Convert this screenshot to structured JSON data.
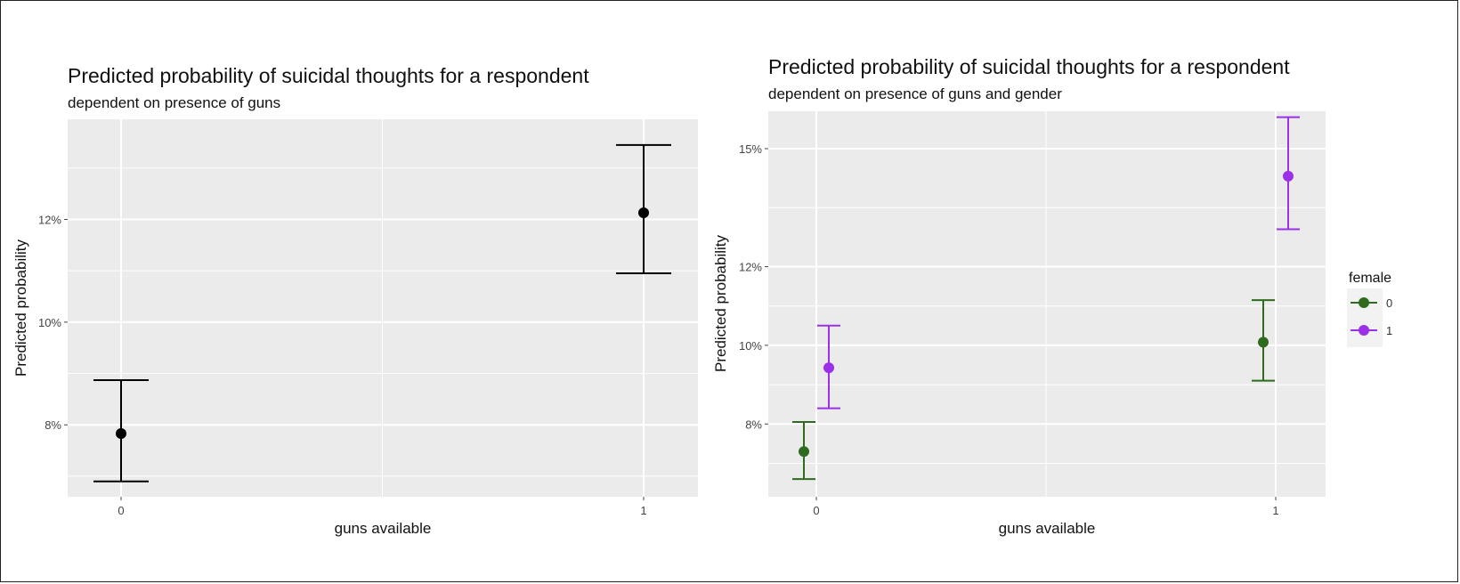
{
  "chart_data": [
    {
      "type": "scatter",
      "title": "Predicted probability of suicidal thoughts for a respondent",
      "subtitle": "dependent on presence of guns",
      "xlabel": "guns available",
      "ylabel": "Predicted probability",
      "x_ticks": [
        "0",
        "1"
      ],
      "y_ticks": [
        {
          "value": 8,
          "label": "8%"
        },
        {
          "value": 10,
          "label": "10%"
        },
        {
          "value": 12,
          "label": "12%"
        }
      ],
      "ylim": [
        6.6,
        13.95
      ],
      "grid": true,
      "series": [
        {
          "color": "#000000",
          "points": [
            {
              "x": "0",
              "y": 7.83,
              "ymin": 6.9,
              "ymax": 8.87
            },
            {
              "x": "1",
              "y": 12.13,
              "ymin": 10.95,
              "ymax": 13.45
            }
          ]
        }
      ]
    },
    {
      "type": "scatter",
      "title": "Predicted probability of suicidal thoughts for a respondent",
      "subtitle": "dependent on presence of guns and gender",
      "xlabel": "guns available",
      "ylabel": "Predicted probability",
      "x_ticks": [
        "0",
        "1"
      ],
      "y_ticks": [
        {
          "value": 8,
          "label": "8%"
        },
        {
          "value": 10,
          "label": "10%"
        },
        {
          "value": 12,
          "label": "12%"
        },
        {
          "value": 15,
          "label": "15%"
        }
      ],
      "ylim": [
        6.15,
        15.95
      ],
      "grid": true,
      "legend": {
        "title": "female",
        "position": "right"
      },
      "series": [
        {
          "name": "0",
          "color": "#2e6b1f",
          "points": [
            {
              "x": "0",
              "y": 7.3,
              "ymin": 6.6,
              "ymax": 8.05
            },
            {
              "x": "1",
              "y": 10.08,
              "ymin": 9.1,
              "ymax": 11.15
            }
          ]
        },
        {
          "name": "1",
          "color": "#9b30e8",
          "points": [
            {
              "x": "0",
              "y": 9.43,
              "ymin": 8.4,
              "ymax": 10.5
            },
            {
              "x": "1",
              "y": 14.3,
              "ymin": 12.95,
              "ymax": 15.8
            }
          ]
        }
      ]
    }
  ]
}
